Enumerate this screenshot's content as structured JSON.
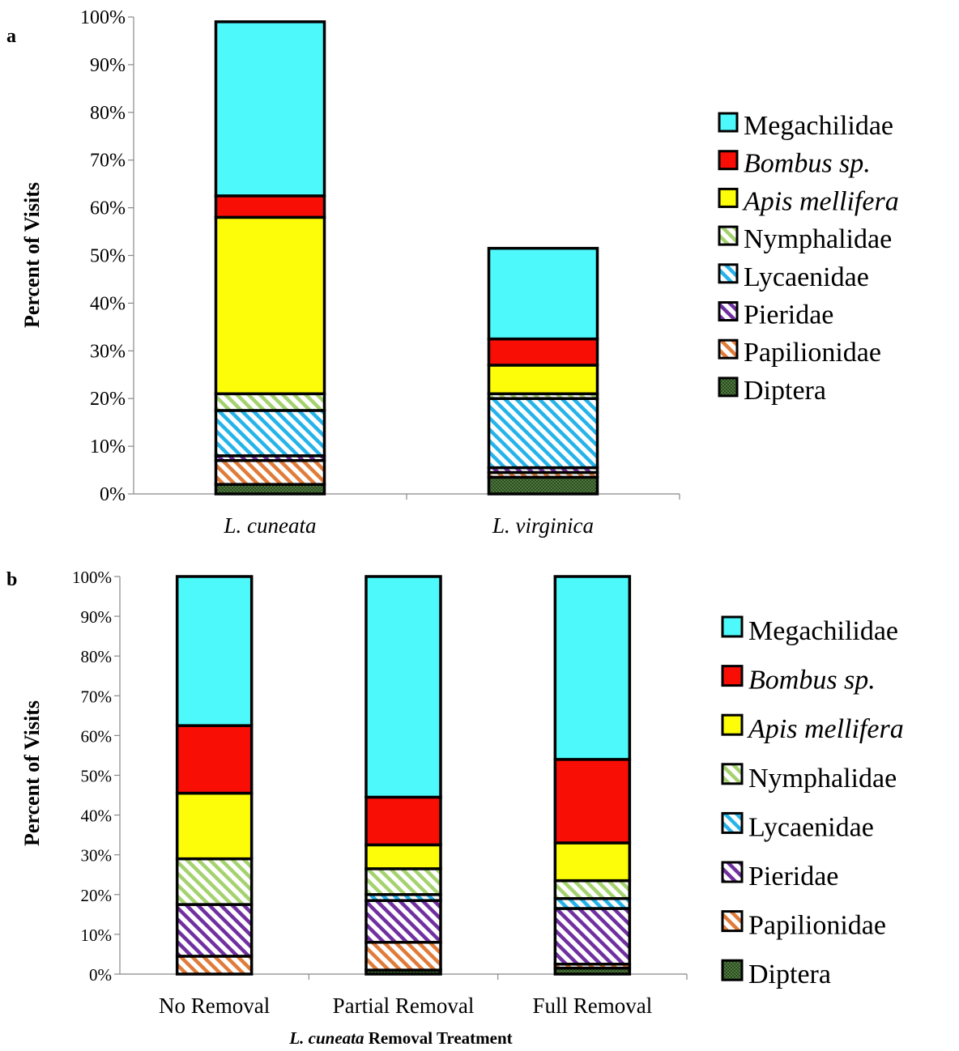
{
  "chart_data": [
    {
      "panel_label": "a",
      "type": "bar",
      "stacked": true,
      "percent": true,
      "ylabel": "Percent of Visits",
      "xlabel": "",
      "ylim": [
        0,
        100
      ],
      "yticks": [
        "0%",
        "10%",
        "20%",
        "30%",
        "40%",
        "50%",
        "60%",
        "70%",
        "80%",
        "90%",
        "100%"
      ],
      "categories": [
        "L. cuneata",
        "L. virginica"
      ],
      "italic_categories": true,
      "legend_position": "right",
      "series": [
        {
          "name": "Diptera",
          "values": [
            2,
            3.5
          ]
        },
        {
          "name": "Papilionidae",
          "values": [
            5,
            1
          ]
        },
        {
          "name": "Pieridae",
          "values": [
            1,
            1
          ]
        },
        {
          "name": "Lycaenidae",
          "values": [
            9.5,
            14.5
          ]
        },
        {
          "name": "Nymphalidae",
          "values": [
            3.5,
            1
          ]
        },
        {
          "name": "Apis mellifera",
          "values": [
            37,
            6
          ]
        },
        {
          "name": "Bombus sp.",
          "values": [
            4.5,
            5.5
          ]
        },
        {
          "name": "Megachilidae",
          "values": [
            36.5,
            19
          ]
        }
      ]
    },
    {
      "panel_label": "b",
      "type": "bar",
      "stacked": true,
      "percent": true,
      "ylabel": "Percent of Visits",
      "xlabel": "L. cuneata Removal Treatment",
      "xlabel_italic_part": "L. cuneata",
      "xlabel_rest": " Removal Treatment",
      "ylim": [
        0,
        100
      ],
      "yticks": [
        "0%",
        "10%",
        "20%",
        "30%",
        "40%",
        "50%",
        "60%",
        "70%",
        "80%",
        "90%",
        "100%"
      ],
      "categories": [
        "No Removal",
        "Partial Removal",
        "Full Removal"
      ],
      "italic_categories": false,
      "legend_position": "right",
      "series": [
        {
          "name": "Diptera",
          "values": [
            0,
            1,
            1.5
          ]
        },
        {
          "name": "Papilionidae",
          "values": [
            4.5,
            7,
            1
          ]
        },
        {
          "name": "Pieridae",
          "values": [
            13,
            10.5,
            14
          ]
        },
        {
          "name": "Lycaenidae",
          "values": [
            0,
            1.5,
            2.5
          ]
        },
        {
          "name": "Nymphalidae",
          "values": [
            11.5,
            6.5,
            4.5
          ]
        },
        {
          "name": "Apis mellifera",
          "values": [
            16.5,
            6,
            9.5
          ]
        },
        {
          "name": "Bombus sp.",
          "values": [
            17,
            12,
            21
          ]
        },
        {
          "name": "Megachilidae",
          "values": [
            37.5,
            55.5,
            46
          ]
        }
      ]
    }
  ],
  "legend": [
    {
      "name": "Megachilidae",
      "italic": false,
      "color": "#4ef9fc",
      "pattern": "solid"
    },
    {
      "name": "Bombus sp.",
      "italic": true,
      "color": "#f90e06",
      "pattern": "solid"
    },
    {
      "name": "Apis mellifera",
      "italic": true,
      "color": "#fdfd09",
      "pattern": "solid"
    },
    {
      "name": "Nymphalidae",
      "italic": false,
      "color": "#a4d26e",
      "pattern": "hatch-wide"
    },
    {
      "name": "Lycaenidae",
      "italic": false,
      "color": "#25b3ea",
      "pattern": "hatch-wide"
    },
    {
      "name": "Pieridae",
      "italic": false,
      "color": "#7030a0",
      "pattern": "hatch-wide"
    },
    {
      "name": "Papilionidae",
      "italic": false,
      "color": "#e07b39",
      "pattern": "hatch-wide"
    },
    {
      "name": "Diptera",
      "italic": false,
      "color": "#4e7a3d",
      "pattern": "dotted-grid"
    }
  ]
}
